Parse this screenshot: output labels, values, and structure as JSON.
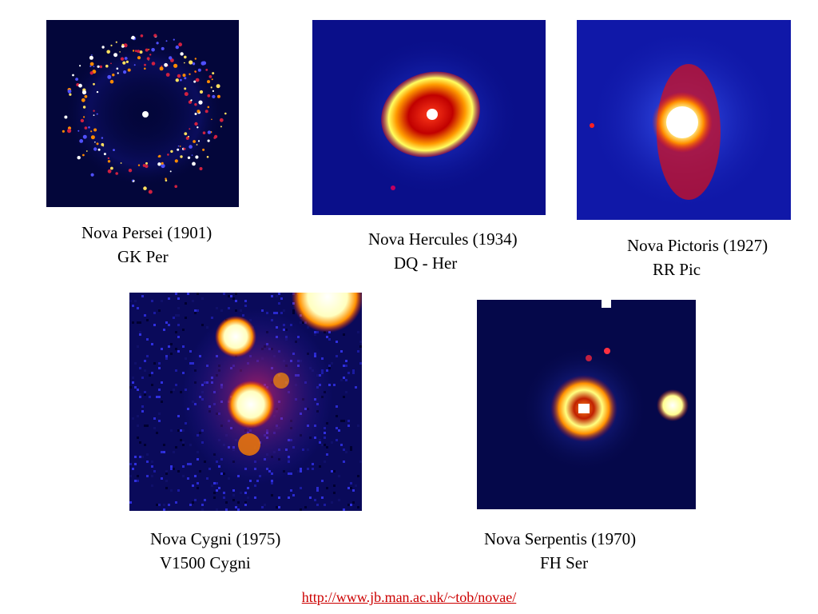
{
  "novae": [
    {
      "name": "Nova Persei (1901)",
      "designation": "GK Per"
    },
    {
      "name": "Nova Hercules (1934)",
      "designation": "DQ - Her"
    },
    {
      "name": "Nova Pictoris (1927)",
      "designation": "RR Pic"
    },
    {
      "name": "Nova Cygni (1975)",
      "designation": "V1500 Cygni"
    },
    {
      "name": "Nova Serpentis (1970)",
      "designation": "FH Ser"
    }
  ],
  "source_url": "http://www.jb.man.ac.uk/~tob/novae/",
  "colors": {
    "background": "#ffffff",
    "image_background": "#050a4a",
    "url_text": "#cc0000"
  }
}
